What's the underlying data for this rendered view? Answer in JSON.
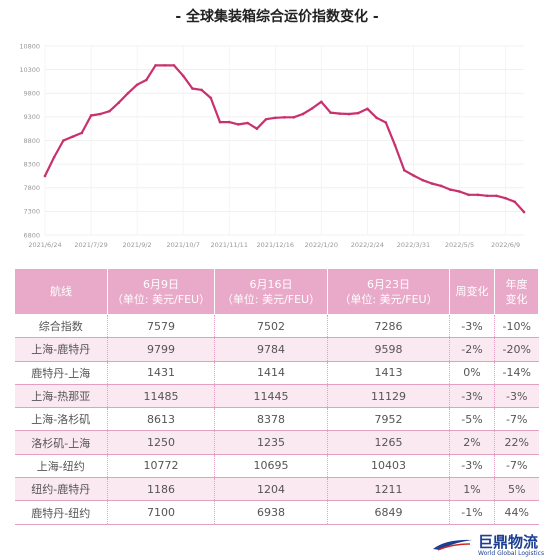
{
  "title": "- 全球集装箱综合运价指数变化 -",
  "chart_data": {
    "type": "line",
    "title": "- 全球集装箱综合运价指数变化 -",
    "xlabel": "",
    "ylabel": "",
    "ylim": [
      6800,
      10800
    ],
    "yticks": [
      6800,
      7300,
      7800,
      8300,
      8800,
      9300,
      9800,
      10300,
      10800
    ],
    "xtick_labels": [
      "2021/6/24",
      "2021/7/29",
      "2021/9/2",
      "2021/10/7",
      "2021/11/11",
      "2021/12/16",
      "2022/1/20",
      "2022/2/24",
      "2022/3/31",
      "2022/5/5",
      "2022/6/9"
    ],
    "grid": true,
    "color": "#c8306e",
    "x": [
      "2021/6/24",
      "2021/7/1",
      "2021/7/8",
      "2021/7/15",
      "2021/7/22",
      "2021/7/29",
      "2021/8/5",
      "2021/8/12",
      "2021/8/19",
      "2021/8/26",
      "2021/9/2",
      "2021/9/9",
      "2021/9/16",
      "2021/9/23",
      "2021/9/30",
      "2021/10/7",
      "2021/10/14",
      "2021/10/21",
      "2021/10/28",
      "2021/11/4",
      "2021/11/11",
      "2021/11/18",
      "2021/11/25",
      "2021/12/2",
      "2021/12/9",
      "2021/12/16",
      "2021/12/23",
      "2021/12/30",
      "2022/1/6",
      "2022/1/13",
      "2022/1/20",
      "2022/1/27",
      "2022/2/3",
      "2022/2/10",
      "2022/2/17",
      "2022/2/24",
      "2022/3/3",
      "2022/3/10",
      "2022/3/17",
      "2022/3/24",
      "2022/3/31",
      "2022/4/7",
      "2022/4/14",
      "2022/4/21",
      "2022/4/28",
      "2022/5/5",
      "2022/5/12",
      "2022/5/19",
      "2022/5/26",
      "2022/6/2",
      "2022/6/9",
      "2022/6/16",
      "2022/6/23"
    ],
    "values": [
      8050,
      8450,
      8800,
      8880,
      8960,
      9330,
      9360,
      9420,
      9600,
      9800,
      9980,
      10080,
      10390,
      10390,
      10390,
      10170,
      9900,
      9870,
      9700,
      9190,
      9190,
      9140,
      9170,
      9050,
      9250,
      9280,
      9290,
      9290,
      9360,
      9480,
      9620,
      9390,
      9370,
      9360,
      9380,
      9470,
      9280,
      9180,
      8700,
      8170,
      8060,
      7960,
      7890,
      7840,
      7760,
      7720,
      7650,
      7650,
      7630,
      7630,
      7579,
      7502,
      7286
    ]
  },
  "table": {
    "headers": [
      {
        "l1": "航线",
        "l2": ""
      },
      {
        "l1": "6月9日",
        "l2": "（单位: 美元/FEU）"
      },
      {
        "l1": "6月16日",
        "l2": "（单位: 美元/FEU）"
      },
      {
        "l1": "6月23日",
        "l2": "（单位: 美元/FEU）"
      },
      {
        "l1": "周变化",
        "l2": ""
      },
      {
        "l1": "年度",
        "l2": "变化"
      }
    ],
    "rows": [
      [
        "综合指数",
        "7579",
        "7502",
        "7286",
        "-3%",
        "-10%"
      ],
      [
        "上海-鹿特丹",
        "9799",
        "9784",
        "9598",
        "-2%",
        "-20%"
      ],
      [
        "鹿特丹-上海",
        "1431",
        "1414",
        "1413",
        "0%",
        "-14%"
      ],
      [
        "上海-热那亚",
        "11485",
        "11445",
        "11129",
        "-3%",
        "-3%"
      ],
      [
        "上海-洛杉矶",
        "8613",
        "8378",
        "7952",
        "-5%",
        "-7%"
      ],
      [
        "洛杉矶-上海",
        "1250",
        "1235",
        "1265",
        "2%",
        "22%"
      ],
      [
        "上海-纽约",
        "10772",
        "10695",
        "10403",
        "-3%",
        "-7%"
      ],
      [
        "纽约-鹿特丹",
        "1186",
        "1204",
        "1211",
        "1%",
        "5%"
      ],
      [
        "鹿特丹-纽约",
        "7100",
        "6938",
        "6849",
        "-1%",
        "44%"
      ]
    ]
  },
  "logo": {
    "brand": "巨鼎物流",
    "sub": "World Global Logistics"
  }
}
